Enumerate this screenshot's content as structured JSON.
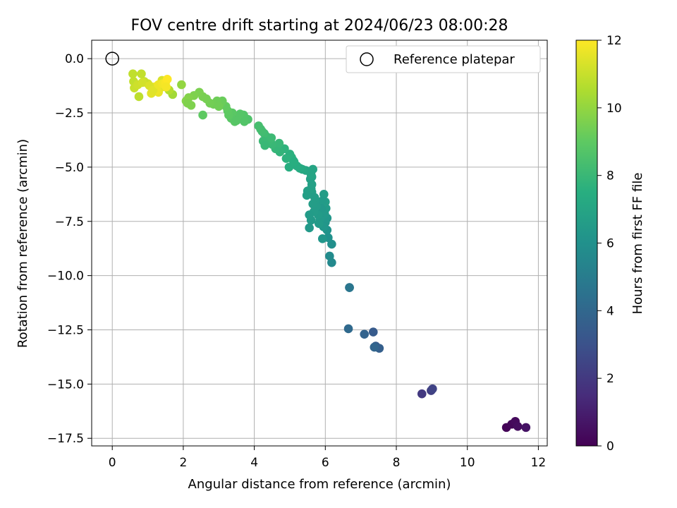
{
  "chart_data": {
    "type": "scatter",
    "title": "FOV centre drift starting at 2024/06/23 08:00:28",
    "xlabel": "Angular distance from reference (arcmin)",
    "ylabel": "Rotation from reference (arcmin)",
    "xlim": [
      -0.58,
      12.25
    ],
    "ylim": [
      -17.85,
      0.85
    ],
    "xticks": [
      0,
      2,
      4,
      6,
      8,
      10,
      12
    ],
    "xtick_labels": [
      "0",
      "2",
      "4",
      "6",
      "8",
      "10",
      "12"
    ],
    "yticks": [
      0.0,
      -2.5,
      -5.0,
      -7.5,
      -10.0,
      -12.5,
      -15.0,
      -17.5
    ],
    "ytick_labels": [
      "0.0",
      "−2.5",
      "−5.0",
      "−7.5",
      "−10.0",
      "−12.5",
      "−15.0",
      "−17.5"
    ],
    "grid": true,
    "legend": {
      "position": "top-right",
      "entries": [
        "Reference platepar"
      ]
    },
    "reference_point": {
      "x": 0,
      "y": 0,
      "label": "Reference platepar"
    },
    "colorbar": {
      "label": "Hours from first FF file",
      "range": [
        0,
        12
      ],
      "ticks": [
        0,
        2,
        4,
        6,
        8,
        10,
        12
      ],
      "tick_labels": [
        "0",
        "2",
        "4",
        "6",
        "8",
        "10",
        "12"
      ],
      "colormap": "viridis"
    },
    "series": [
      {
        "values_x": [
          11.1,
          11.25,
          11.35,
          11.42,
          11.65,
          8.72,
          8.98,
          9.02,
          7.35,
          7.42,
          7.52,
          7.1,
          7.38,
          6.65,
          6.68,
          6.68,
          6.18,
          6.12,
          6.18,
          6.08,
          6.05,
          6.0,
          6.05,
          5.98,
          6.02,
          6.0,
          5.96,
          5.92,
          5.9,
          5.88,
          5.95,
          5.92,
          5.85,
          5.82,
          5.8,
          5.75,
          5.72,
          5.62,
          5.7,
          5.65,
          5.68,
          5.6,
          5.55,
          5.6,
          5.5,
          5.62,
          5.65,
          5.58,
          5.48,
          5.55,
          5.62,
          5.6,
          5.45,
          5.35,
          5.28,
          5.2,
          5.1,
          5.05,
          5.0,
          4.98,
          4.9,
          4.85,
          5.12,
          4.72,
          4.6,
          4.7,
          4.5,
          4.42,
          4.35,
          4.48,
          4.28,
          4.22,
          4.18,
          4.12,
          4.25,
          4.3,
          3.82,
          3.7,
          3.6,
          3.52,
          3.45,
          3.38,
          3.35,
          3.28,
          3.25,
          3.2,
          3.1,
          3.05,
          2.95,
          2.85,
          2.75,
          2.65,
          2.55,
          2.45,
          2.3,
          2.15,
          2.08,
          2.12,
          2.22,
          2.55,
          3.0,
          3.5,
          3.72,
          1.95,
          1.7,
          1.6,
          1.5,
          1.45,
          1.4,
          1.35,
          1.3,
          1.25,
          1.2,
          1.1,
          1.0,
          0.9,
          0.82,
          0.75,
          0.58,
          0.6,
          0.62,
          0.72,
          0.85,
          1.05,
          1.15,
          1.3,
          1.42,
          1.5,
          1.55,
          1.52
        ],
        "values_y": [
          -17.0,
          -16.85,
          -16.72,
          -16.95,
          -17.0,
          -15.45,
          -15.3,
          -15.22,
          -12.6,
          -13.25,
          -13.35,
          -12.7,
          -13.3,
          -12.45,
          -10.55,
          -10.55,
          -9.4,
          -9.1,
          -8.55,
          -8.25,
          -7.9,
          -7.55,
          -7.35,
          -7.15,
          -6.9,
          -6.6,
          -6.25,
          -6.55,
          -7.0,
          -6.9,
          -7.75,
          -8.3,
          -7.4,
          -7.6,
          -7.2,
          -6.8,
          -6.5,
          -6.15,
          -6.4,
          -6.7,
          -7.05,
          -7.45,
          -7.8,
          -6.0,
          -6.1,
          -5.45,
          -5.1,
          -5.55,
          -6.3,
          -7.2,
          -5.8,
          -5.35,
          -5.15,
          -5.1,
          -5.05,
          -4.95,
          -4.7,
          -4.55,
          -4.4,
          -5.0,
          -4.6,
          -4.15,
          -4.75,
          -4.3,
          -4.15,
          -3.9,
          -3.95,
          -3.75,
          -3.6,
          -3.65,
          -3.45,
          -3.35,
          -3.25,
          -3.1,
          -3.8,
          -4.0,
          -2.8,
          -2.6,
          -2.55,
          -2.75,
          -2.9,
          -2.5,
          -2.75,
          -2.6,
          -2.4,
          -2.2,
          -1.95,
          -2.05,
          -1.95,
          -2.1,
          -2.05,
          -1.85,
          -1.75,
          -1.55,
          -1.7,
          -1.8,
          -1.95,
          -2.05,
          -2.15,
          -2.6,
          -2.2,
          -2.85,
          -2.9,
          -1.2,
          -1.65,
          -1.45,
          -1.3,
          -1.2,
          -1.0,
          -1.35,
          -1.55,
          -1.45,
          -1.3,
          -1.6,
          -1.15,
          -1.05,
          -0.7,
          -1.75,
          -0.7,
          -1.05,
          -1.35,
          -1.2,
          -1.1,
          -1.25,
          -1.45,
          -1.2,
          -1.15,
          -1.1,
          -0.95,
          -1.3
        ],
        "values_c": [
          0.1,
          0.2,
          0.3,
          0.4,
          0.6,
          2.0,
          2.2,
          2.4,
          3.4,
          3.5,
          3.6,
          3.8,
          3.9,
          4.1,
          4.6,
          4.7,
          5.6,
          5.7,
          5.9,
          6.0,
          6.1,
          6.2,
          6.3,
          6.4,
          6.5,
          6.6,
          6.6,
          6.5,
          6.4,
          6.35,
          6.3,
          6.25,
          6.4,
          6.45,
          6.5,
          6.55,
          6.6,
          6.7,
          6.65,
          6.6,
          6.55,
          6.45,
          6.4,
          6.8,
          6.75,
          6.9,
          7.0,
          6.85,
          6.7,
          6.5,
          6.8,
          7.0,
          7.1,
          7.2,
          7.3,
          7.4,
          7.5,
          7.55,
          7.6,
          7.45,
          7.65,
          7.7,
          7.5,
          7.8,
          7.9,
          7.95,
          8.0,
          8.05,
          8.1,
          8.1,
          8.2,
          8.25,
          8.3,
          8.35,
          8.05,
          8.0,
          8.6,
          8.7,
          8.75,
          8.8,
          8.85,
          8.9,
          8.85,
          8.95,
          9.0,
          9.1,
          9.2,
          9.25,
          9.3,
          9.35,
          9.4,
          9.45,
          9.5,
          9.55,
          9.6,
          9.7,
          9.75,
          9.65,
          9.6,
          9.0,
          9.35,
          8.8,
          8.7,
          10.0,
          10.3,
          10.6,
          10.9,
          11.1,
          11.3,
          11.5,
          11.6,
          11.7,
          11.8,
          11.5,
          11.2,
          11.0,
          10.9,
          10.8,
          10.85,
          10.9,
          11.0,
          11.1,
          11.2,
          11.35,
          11.45,
          11.7,
          11.8,
          11.9,
          12.0,
          11.85
        ]
      }
    ]
  }
}
